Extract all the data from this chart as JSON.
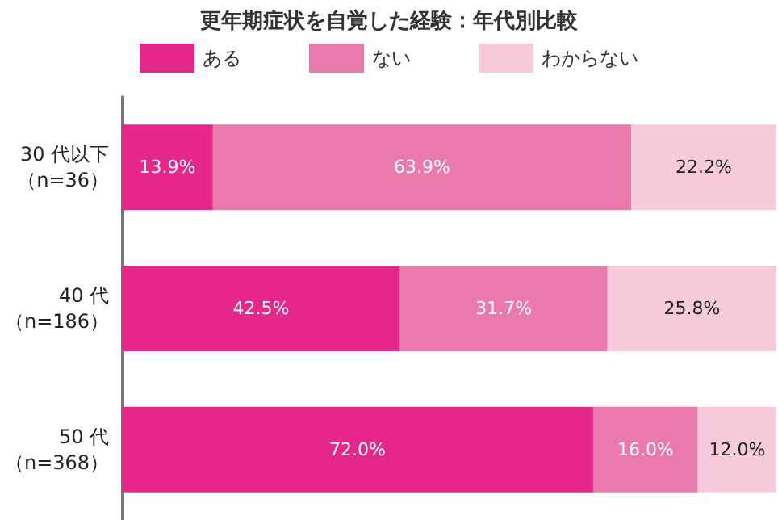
{
  "chart_data": {
    "type": "bar",
    "orientation": "horizontal",
    "stacked": true,
    "title": "更年期症状を自覚した経験：年代別比較",
    "categories": [
      "30 代以下（n=36）",
      "40 代（n=186）",
      "50 代（n=368）"
    ],
    "series": [
      {
        "name": "ある",
        "color": "#e5278a",
        "values": [
          13.9,
          42.5,
          72.0
        ],
        "value_labels": [
          "13.9%",
          "42.5%",
          "72.0%"
        ]
      },
      {
        "name": "ない",
        "color": "#ea7aab",
        "values": [
          63.9,
          31.7,
          16.0
        ],
        "value_labels": [
          "63.9%",
          "31.7%",
          "16.0%"
        ]
      },
      {
        "name": "わからない",
        "color": "#f7cadc",
        "values": [
          22.2,
          25.8,
          12.0
        ],
        "value_labels": [
          "22.2%",
          "25.8%",
          "12.0%"
        ]
      }
    ],
    "xlim": [
      0,
      100
    ],
    "tick_labels": "y",
    "legend": "top",
    "grid": false
  }
}
